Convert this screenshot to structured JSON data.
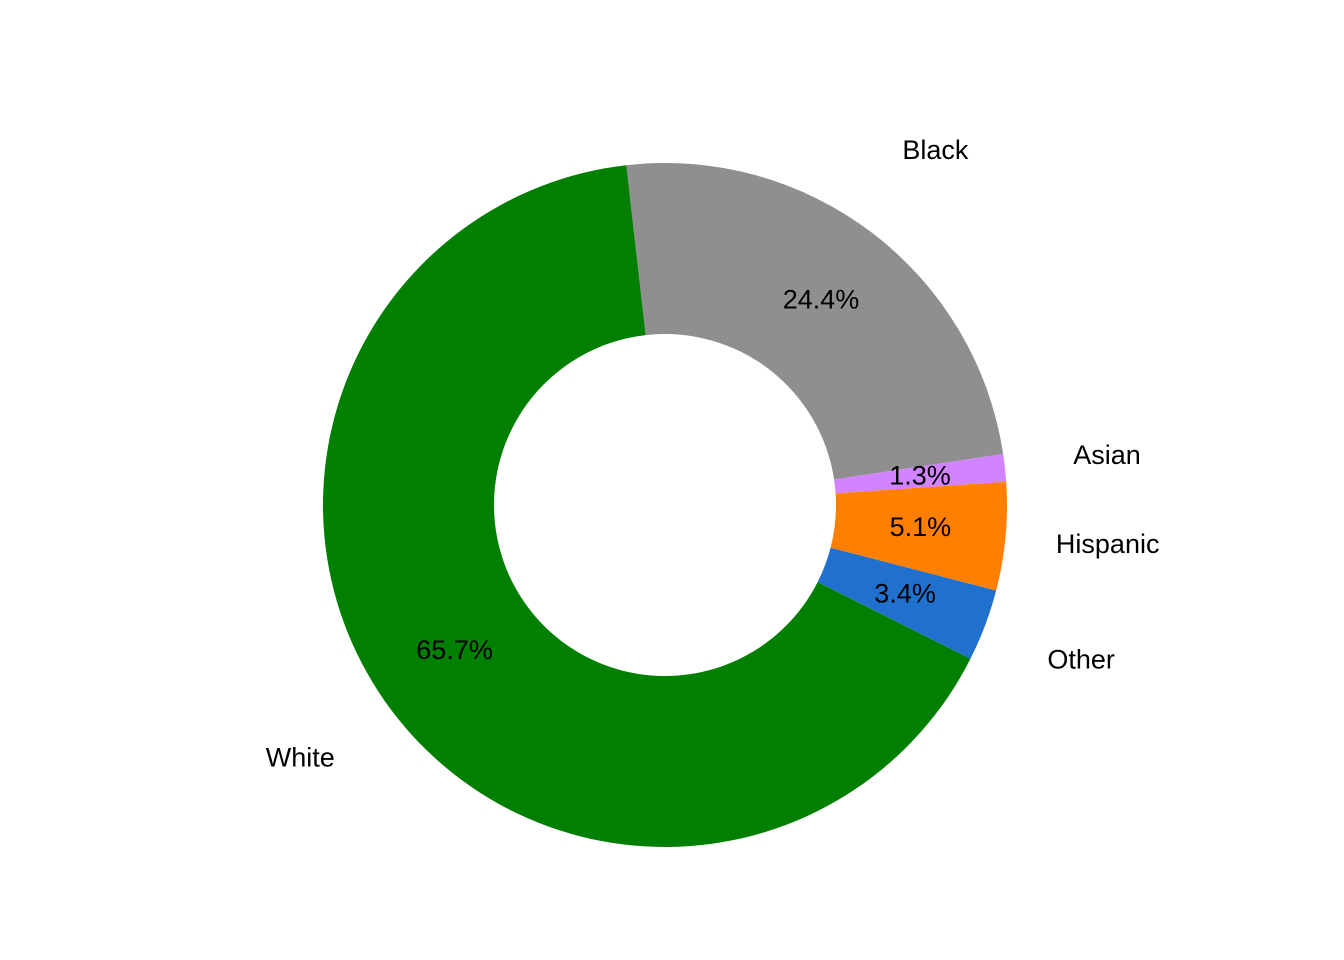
{
  "chart_data": {
    "type": "donut",
    "categories": [
      "Black",
      "Asian",
      "Hispanic",
      "Other",
      "White"
    ],
    "values": [
      24.4,
      1.3,
      5.1,
      3.4,
      65.7
    ],
    "value_labels": [
      "24.4%",
      "1.3%",
      "5.1%",
      "3.4%",
      "65.7%"
    ],
    "colors": [
      "#8f8f8f",
      "#d283ff",
      "#ff7f00",
      "#1f71cd",
      "#007f00"
    ]
  }
}
